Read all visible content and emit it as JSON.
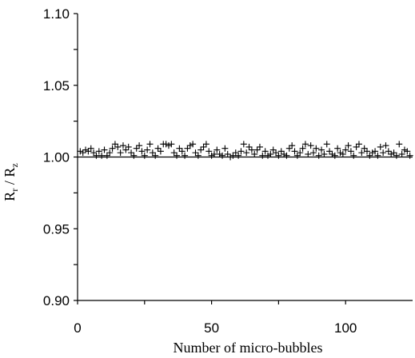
{
  "chart_data": {
    "type": "scatter",
    "title": "",
    "xlabel": "Number of micro-bubbles",
    "ylabel_main": "R",
    "ylabel_sub1": "r",
    "ylabel_sep": " / ",
    "ylabel_main2": "R",
    "ylabel_sub2": "z",
    "xlim": [
      0,
      125
    ],
    "ylim": [
      0.9,
      1.1
    ],
    "xticks": [
      0,
      50,
      100
    ],
    "xtick_labels": [
      "0",
      "50",
      "100"
    ],
    "xminor_ticks": [
      25,
      75
    ],
    "yticks": [
      0.9,
      0.95,
      1.0,
      1.05,
      1.1
    ],
    "ytick_labels": [
      "0.90",
      "0.95",
      "1.00",
      "1.05",
      "1.10"
    ],
    "yminor_ticks": [
      0.925,
      0.975,
      1.025,
      1.075
    ],
    "reference_line": {
      "y": 1.0
    },
    "marker": "plus",
    "grid": false,
    "series": [
      {
        "x": [
          1,
          2,
          3,
          4,
          5,
          6,
          7,
          8,
          9,
          10,
          11,
          12,
          13,
          14,
          15,
          16,
          17,
          18,
          19,
          20,
          21,
          22,
          23,
          24,
          25,
          26,
          27,
          28,
          29,
          30,
          31,
          32,
          33,
          34,
          35,
          36,
          37,
          38,
          39,
          40,
          41,
          42,
          43,
          44,
          45,
          46,
          47,
          48,
          49,
          50,
          51,
          52,
          53,
          54,
          55,
          56,
          57,
          58,
          59,
          60,
          61,
          62,
          63,
          64,
          65,
          66,
          67,
          68,
          69,
          70,
          71,
          72,
          73,
          74,
          75,
          76,
          77,
          78,
          79,
          80,
          81,
          82,
          83,
          84,
          85,
          86,
          87,
          88,
          89,
          90,
          91,
          92,
          93,
          94,
          95,
          96,
          97,
          98,
          99,
          100,
          101,
          102,
          103,
          104,
          105,
          106,
          107,
          108,
          109,
          110,
          111,
          112,
          113,
          114,
          115,
          116,
          117,
          118,
          119,
          120,
          121,
          122,
          123,
          124
        ],
        "y": [
          1.004,
          1.003,
          1.005,
          1.004,
          1.006,
          1.003,
          1.001,
          1.004,
          1.001,
          1.005,
          1.001,
          1.003,
          1.006,
          1.009,
          1.007,
          1.003,
          1.008,
          1.005,
          1.007,
          1.003,
          1.001,
          1.006,
          1.008,
          1.004,
          1.001,
          1.005,
          1.009,
          1.003,
          1.001,
          1.006,
          1.004,
          1.009,
          1.009,
          1.008,
          1.009,
          1.003,
          1.001,
          1.006,
          1.004,
          1.001,
          1.006,
          1.008,
          1.009,
          1.003,
          1.001,
          1.005,
          1.007,
          1.009,
          1.004,
          1.001,
          1.002,
          1.005,
          1.002,
          1.001,
          1.006,
          1.002,
          1.0,
          1.001,
          1.003,
          1.001,
          1.004,
          1.009,
          1.003,
          1.007,
          1.005,
          1.002,
          1.005,
          1.007,
          1.001,
          1.004,
          1.001,
          1.002,
          1.005,
          1.003,
          1.001,
          1.004,
          1.002,
          1.001,
          1.006,
          1.008,
          1.004,
          1.001,
          1.003,
          1.006,
          1.009,
          1.002,
          1.008,
          1.003,
          1.006,
          1.001,
          1.005,
          1.002,
          1.009,
          1.004,
          1.002,
          1.001,
          1.006,
          1.003,
          1.002,
          1.005,
          1.008,
          1.004,
          1.001,
          1.007,
          1.009,
          1.003,
          1.006,
          1.004,
          1.001,
          1.003,
          1.004,
          1.001,
          1.007,
          1.003,
          1.008,
          1.004,
          1.002,
          1.003,
          1.001,
          1.009,
          1.002,
          1.005,
          1.004,
          1.001
        ]
      }
    ]
  }
}
